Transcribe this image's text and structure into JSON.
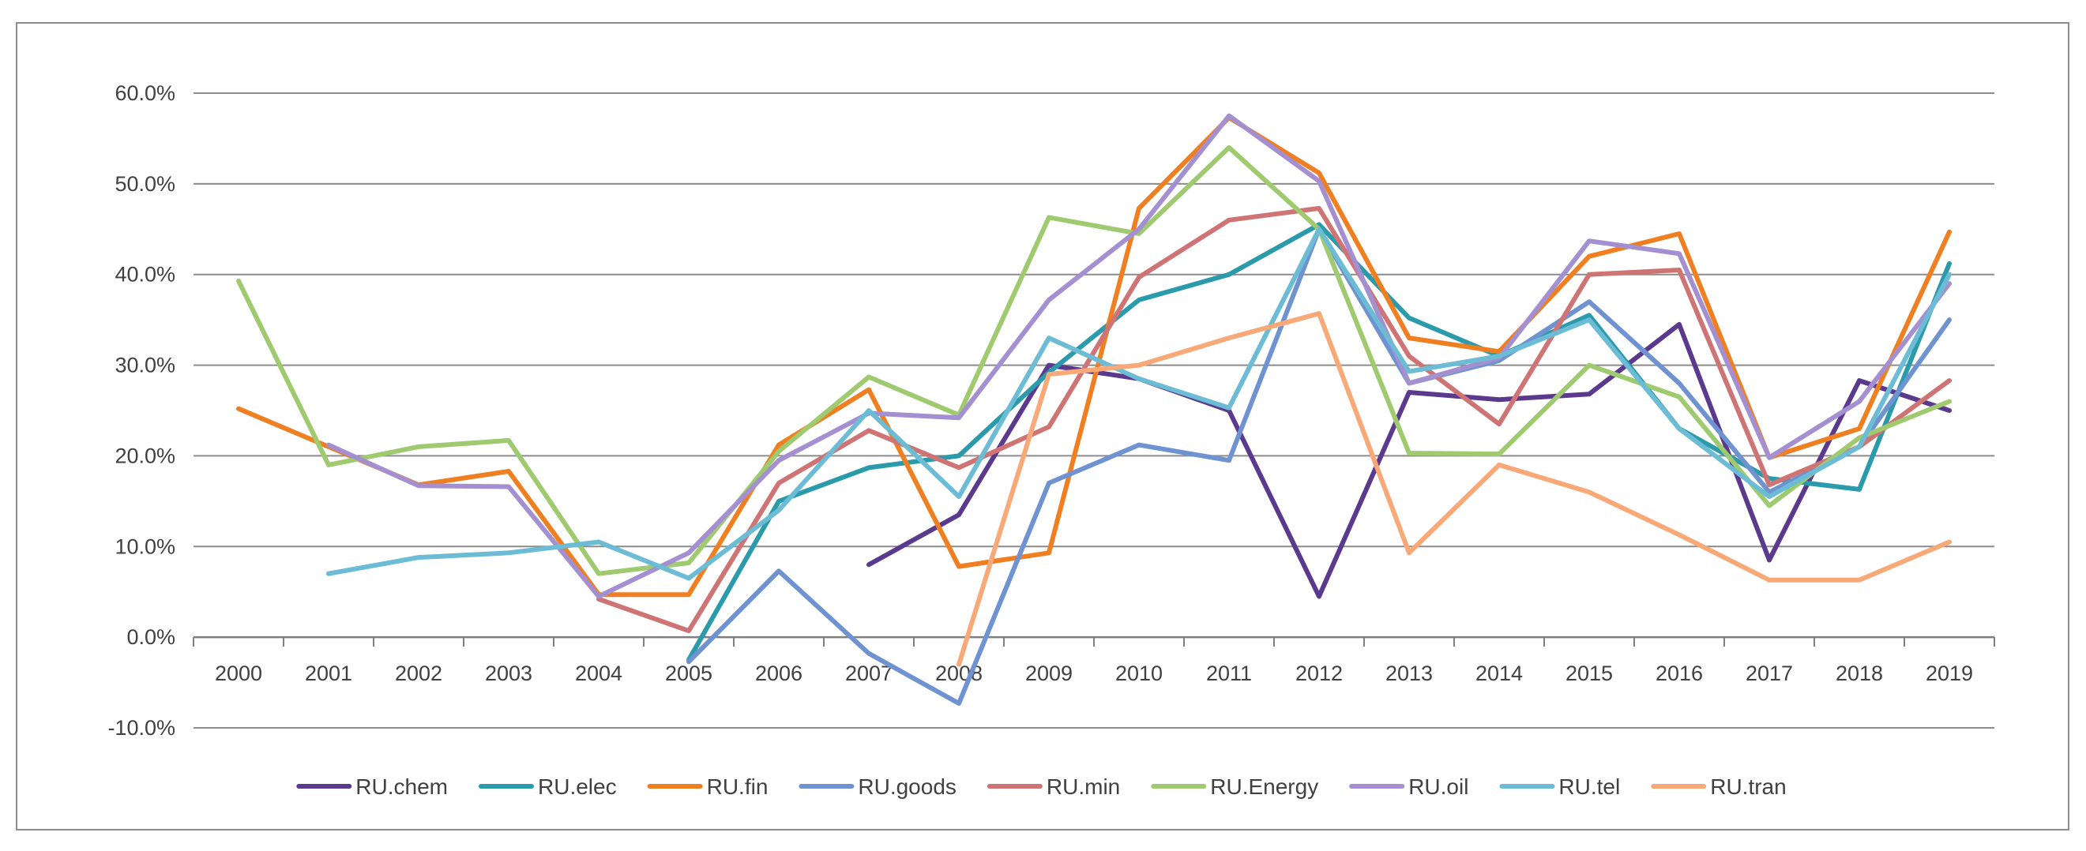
{
  "chart_data": {
    "type": "line",
    "title": "",
    "xlabel": "",
    "ylabel": "",
    "categories": [
      "2000",
      "2001",
      "2002",
      "2003",
      "2004",
      "2005",
      "2006",
      "2007",
      "2008",
      "2009",
      "2010",
      "2011",
      "2012",
      "2013",
      "2014",
      "2015",
      "2016",
      "2017",
      "2018",
      "2019"
    ],
    "ylim": [
      -0.1,
      0.6
    ],
    "yticks": [
      -0.1,
      0.0,
      0.1,
      0.2,
      0.3,
      0.4,
      0.5,
      0.6
    ],
    "ytick_labels": [
      "-10.0%",
      "0.0%",
      "10.0%",
      "20.0%",
      "30.0%",
      "40.0%",
      "50.0%",
      "60.0%"
    ],
    "grid": "horizontal",
    "legend_position": "bottom",
    "series": [
      {
        "name": "RU.chem",
        "color": "#5b3a8e",
        "values": [
          null,
          null,
          null,
          null,
          null,
          null,
          null,
          0.08,
          0.135,
          0.3,
          0.285,
          0.25,
          0.045,
          0.27,
          0.262,
          0.268,
          0.345,
          0.085,
          0.283,
          0.25
        ]
      },
      {
        "name": "RU.elec",
        "color": "#2b9aab",
        "values": [
          null,
          null,
          null,
          null,
          null,
          -0.025,
          0.15,
          0.187,
          0.2,
          0.292,
          0.372,
          0.4,
          0.455,
          0.352,
          0.31,
          0.355,
          0.23,
          0.175,
          0.163,
          0.412
        ]
      },
      {
        "name": "RU.fin",
        "color": "#f07f22",
        "values": [
          0.252,
          0.21,
          0.168,
          0.183,
          0.047,
          0.047,
          0.212,
          0.273,
          0.078,
          0.093,
          0.473,
          0.573,
          0.512,
          0.33,
          0.315,
          0.42,
          0.445,
          0.198,
          0.23,
          0.447
        ]
      },
      {
        "name": "RU.goods",
        "color": "#6f93d1",
        "values": [
          null,
          null,
          null,
          null,
          null,
          -0.027,
          0.073,
          -0.018,
          -0.073,
          0.17,
          0.212,
          0.195,
          0.45,
          0.28,
          0.305,
          0.37,
          0.28,
          0.16,
          0.21,
          0.35
        ]
      },
      {
        "name": "RU.min",
        "color": "#cf7474",
        "values": [
          null,
          null,
          null,
          null,
          0.042,
          0.007,
          0.17,
          0.228,
          0.187,
          0.232,
          0.397,
          0.46,
          0.473,
          0.31,
          0.235,
          0.4,
          0.405,
          0.168,
          0.21,
          0.283
        ]
      },
      {
        "name": "RU.Energy",
        "color": "#9fca6f",
        "values": [
          0.393,
          0.19,
          0.21,
          0.217,
          0.07,
          0.082,
          0.205,
          0.287,
          0.245,
          0.463,
          0.445,
          0.54,
          0.45,
          0.203,
          0.202,
          0.3,
          0.265,
          0.145,
          0.22,
          0.26
        ]
      },
      {
        "name": "RU.oil",
        "color": "#a48fd0",
        "values": [
          null,
          0.212,
          0.167,
          0.166,
          0.045,
          0.093,
          0.195,
          0.247,
          0.242,
          0.372,
          0.45,
          0.575,
          0.503,
          0.28,
          0.308,
          0.437,
          0.423,
          0.198,
          0.26,
          0.39
        ]
      },
      {
        "name": "RU.tel",
        "color": "#6cbcd6",
        "values": [
          null,
          0.07,
          0.088,
          0.093,
          0.105,
          0.065,
          0.14,
          0.25,
          0.155,
          0.33,
          0.285,
          0.253,
          0.45,
          0.293,
          0.31,
          0.35,
          0.23,
          0.155,
          0.21,
          0.4
        ]
      },
      {
        "name": "RU.tran",
        "color": "#f9a977",
        "values": [
          null,
          null,
          null,
          null,
          null,
          null,
          null,
          null,
          -0.03,
          0.29,
          0.3,
          0.33,
          0.357,
          0.093,
          0.19,
          0.16,
          0.113,
          0.063,
          0.063,
          0.105
        ]
      }
    ]
  }
}
